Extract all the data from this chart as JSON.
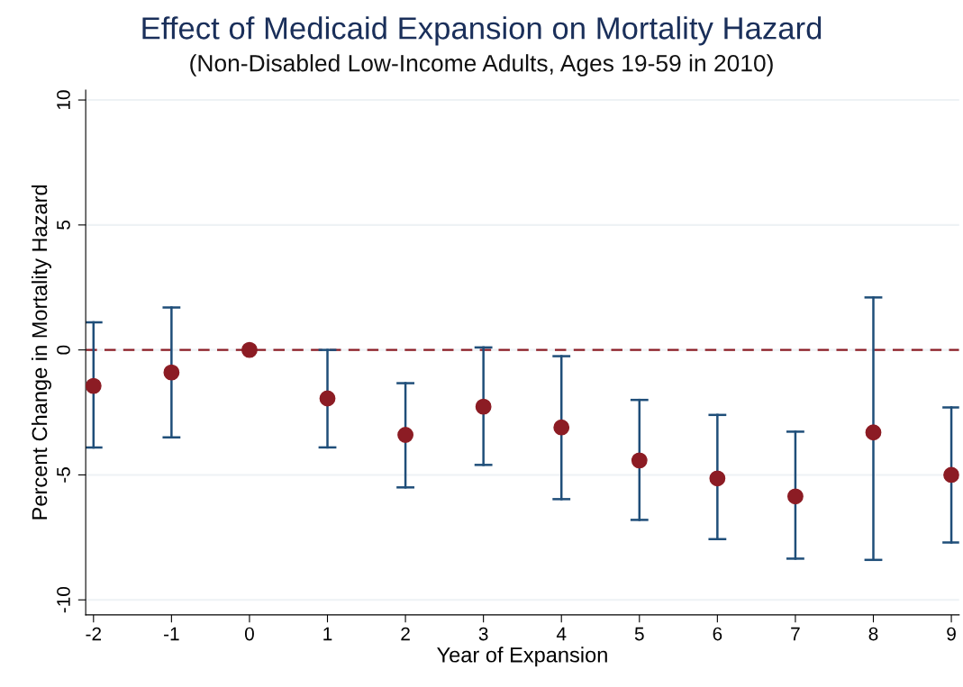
{
  "chart_data": {
    "type": "scatter",
    "title": "Effect of Medicaid Expansion on Mortality Hazard",
    "subtitle": "(Non-Disabled Low-Income Adults, Ages 19-59 in 2010)",
    "xlabel": "Year of Expansion",
    "ylabel": "Percent Change in Mortality Hazard",
    "x": [
      -2,
      -1,
      0,
      1,
      2,
      3,
      4,
      5,
      6,
      7,
      8,
      9
    ],
    "series": [
      {
        "color": "#8c1c24",
        "values": [
          -1.44,
          -0.9,
          0,
          -1.94,
          -3.4,
          -2.27,
          -3.1,
          -4.42,
          -5.14,
          -5.86,
          -3.3,
          -5.0
        ],
        "errors": [
          [
            -3.9,
            1.1
          ],
          [
            -3.5,
            1.7
          ],
          null,
          [
            -3.9,
            0
          ],
          [
            -5.5,
            -1.33
          ],
          [
            -4.6,
            0.1
          ],
          [
            -5.97,
            -0.25
          ],
          [
            -6.8,
            -2.0
          ],
          [
            -7.57,
            -2.6
          ],
          [
            -8.35,
            -3.27
          ],
          [
            -8.4,
            2.1
          ],
          [
            -7.7,
            -2.3
          ]
        ]
      }
    ],
    "marker": "circle",
    "xlim": [
      -2.1,
      9.1
    ],
    "xticks": [
      -2,
      -1,
      0,
      1,
      2,
      3,
      4,
      5,
      6,
      7,
      8,
      9
    ],
    "ylim": [
      -10.6,
      10.4
    ],
    "yticks": [
      {
        "value": -10,
        "label": "-10"
      },
      {
        "value": -5,
        "label": "-5"
      },
      0,
      5,
      10
    ],
    "grid": "y",
    "ref_lines": [
      {
        "axis": "y",
        "value": 0,
        "color": "#8c1c24",
        "line_style": "dashed"
      }
    ]
  }
}
